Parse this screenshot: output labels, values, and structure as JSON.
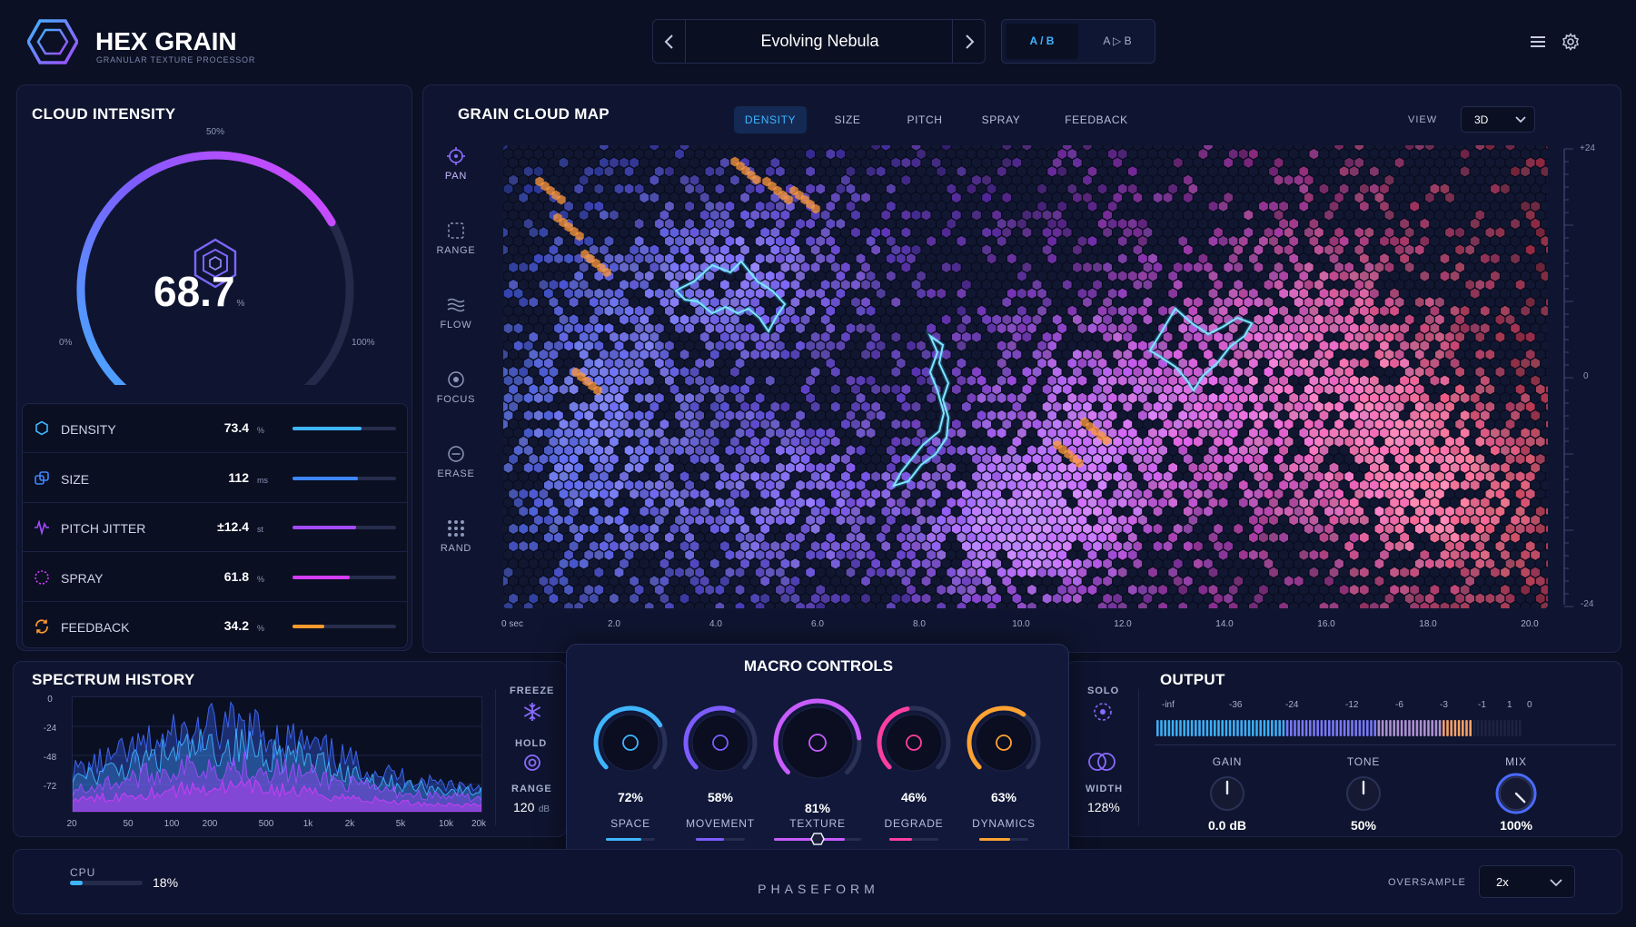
{
  "brand": {
    "name": "HEX GRAIN",
    "subtitle": "GRANULAR TEXTURE PROCESSOR"
  },
  "preset": {
    "name": "Evolving Nebula",
    "ab_label": "A / B",
    "copy_label": "A ▷ B"
  },
  "cloud_intensity": {
    "title": "CLOUD INTENSITY",
    "value": "68.7",
    "unit": "%",
    "label_min": "0%",
    "label_mid": "50%",
    "label_max": "100%",
    "level": 0.687
  },
  "params": [
    {
      "name": "DENSITY",
      "value": "73.4",
      "unit": "%",
      "fill": 0.67,
      "color": "#3fb5ff",
      "icon": "hexagon-icon"
    },
    {
      "name": "SIZE",
      "value": "112",
      "unit": "ms",
      "fill": 0.63,
      "color": "#3e86ff",
      "icon": "resize-icon"
    },
    {
      "name": "PITCH JITTER",
      "value": "±12.4",
      "unit": "st",
      "fill": 0.61,
      "color": "#a24bff",
      "icon": "wave-icon"
    },
    {
      "name": "SPRAY",
      "value": "61.8",
      "unit": "%",
      "fill": 0.55,
      "color": "#d43cff",
      "icon": "spray-icon"
    },
    {
      "name": "FEEDBACK",
      "value": "34.2",
      "unit": "%",
      "fill": 0.31,
      "color": "#ff9a2e",
      "icon": "loop-icon"
    }
  ],
  "map": {
    "title": "GRAIN CLOUD MAP",
    "tabs": [
      "DENSITY",
      "SIZE",
      "PITCH",
      "SPRAY",
      "FEEDBACK"
    ],
    "active_tab": "DENSITY",
    "view_label": "VIEW",
    "view_value": "3D",
    "tools": [
      "PAN",
      "RANGE",
      "FLOW",
      "FOCUS",
      "ERASE",
      "RAND"
    ],
    "x_ticks": [
      "0 sec",
      "2.0",
      "4.0",
      "6.0",
      "8.0",
      "10.0",
      "12.0",
      "14.0",
      "16.0",
      "18.0",
      "20.0"
    ],
    "y_ticks": [
      "+24",
      "0",
      "-24"
    ]
  },
  "spectrum": {
    "title": "SPECTRUM HISTORY",
    "y_ticks": [
      "0",
      "-24",
      "-48",
      "-72"
    ],
    "x_ticks": [
      "20",
      "50",
      "100",
      "200",
      "500",
      "1k",
      "2k",
      "5k",
      "10k",
      "20k"
    ],
    "freeze_label": "FREEZE",
    "hold_label": "HOLD",
    "range_label": "RANGE",
    "range_value": "120",
    "range_unit": "dB"
  },
  "macro": {
    "title": "MACRO CONTROLS",
    "knobs": [
      {
        "name": "SPACE",
        "value": "72%",
        "level": 0.72,
        "color": "#3fb5ff"
      },
      {
        "name": "MOVEMENT",
        "value": "58%",
        "level": 0.58,
        "color": "#7d5cff"
      },
      {
        "name": "TEXTURE",
        "value": "81%",
        "level": 0.81,
        "color": "#c85cff"
      },
      {
        "name": "DEGRADE",
        "value": "46%",
        "level": 0.46,
        "color": "#ff3fa0"
      },
      {
        "name": "DYNAMICS",
        "value": "63%",
        "level": 0.63,
        "color": "#ffa232"
      }
    ]
  },
  "solo": {
    "label": "SOLO",
    "width_label": "WIDTH",
    "width_value": "128%"
  },
  "output": {
    "title": "OUTPUT",
    "meter_ticks": [
      "-inf",
      "-36",
      "-24",
      "-12",
      "-6",
      "-3",
      "-1",
      "1",
      "0"
    ],
    "knobs": [
      {
        "name": "GAIN",
        "value": "0.0 dB",
        "level": 0.5
      },
      {
        "name": "TONE",
        "value": "50%",
        "level": 0.5
      },
      {
        "name": "MIX",
        "value": "100%",
        "level": 1.0
      }
    ]
  },
  "footer": {
    "cpu_label": "CPU",
    "cpu_value": "18%",
    "cpu_level": 0.18,
    "brand": "PHASEFORM",
    "oversample_label": "OVERSAMPLE",
    "oversample_value": "2x"
  }
}
